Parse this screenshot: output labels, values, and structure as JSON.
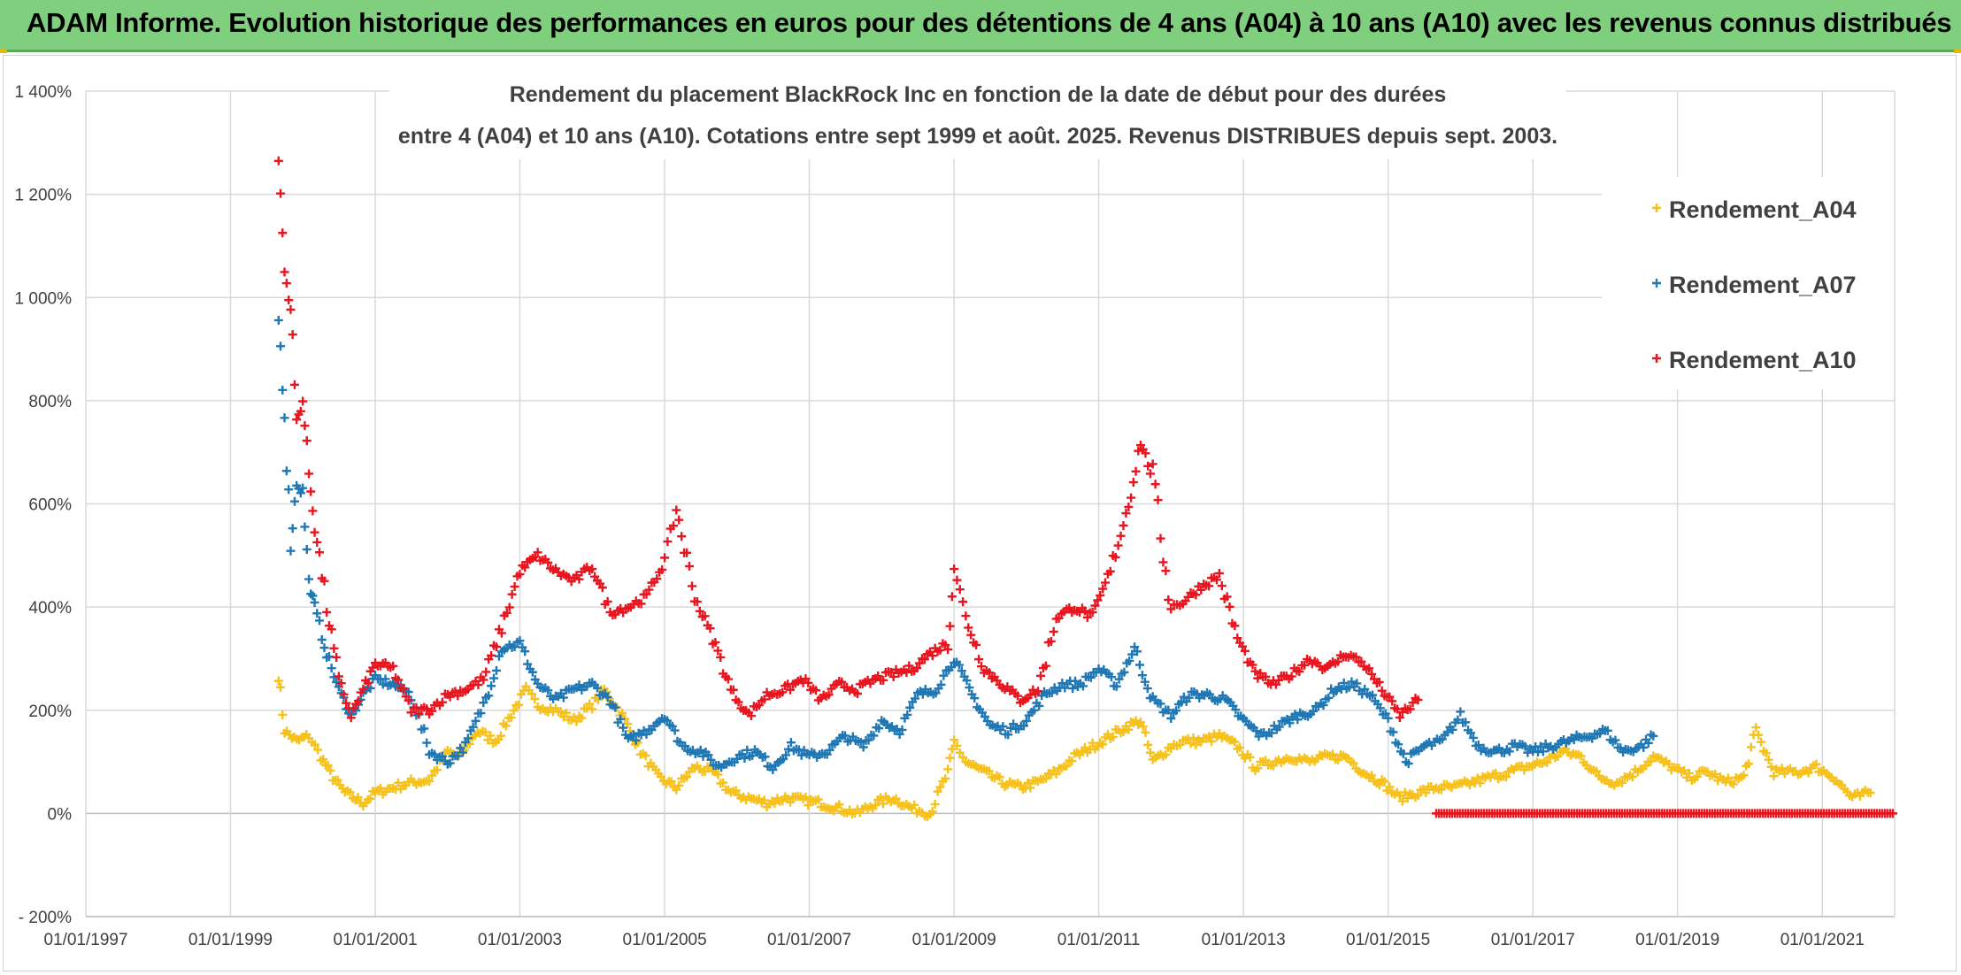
{
  "banner": {
    "text": "ADAM Informe. Evolution historique des performances en euros pour des détentions de 4 ans (A04) à 10 ans (A10) avec les revenus connus distribués"
  },
  "chart_data": {
    "type": "scatter",
    "title": "Rendement du placement BlackRock Inc en fonction de la date de début pour des durées",
    "subtitle": "entre 4 (A04) et 10 ans (A10). Cotations entre sept 1999 et août. 2025. Revenus DISTRIBUES depuis sept. 2003.",
    "xlabel": "",
    "ylabel": "",
    "x_tick_labels": [
      "01/01/1997",
      "01/01/1999",
      "01/01/2001",
      "01/01/2003",
      "01/01/2005",
      "01/01/2007",
      "01/01/2009",
      "01/01/2011",
      "01/01/2013",
      "01/01/2015",
      "01/01/2017",
      "01/01/2019",
      "01/01/2021"
    ],
    "y_tick_labels": [
      "- 200%",
      "0%",
      "200%",
      "400%",
      "600%",
      "800%",
      "1 000%",
      "1 200%",
      "1 400%"
    ],
    "ylim": [
      -200,
      1400
    ],
    "xlim": [
      "1997-01-01",
      "2022-01-01"
    ],
    "grid": true,
    "legend_position": "top-right",
    "series": [
      {
        "name": "Rendement_A04",
        "color": "#f5c11a",
        "points": [
          [
            "1999-09",
            270
          ],
          [
            "1999-10",
            160
          ],
          [
            "1999-12",
            140
          ],
          [
            "2000-02",
            150
          ],
          [
            "2000-04",
            110
          ],
          [
            "2000-06",
            70
          ],
          [
            "2000-08",
            40
          ],
          [
            "2000-11",
            20
          ],
          [
            "2001-01",
            40
          ],
          [
            "2001-04",
            50
          ],
          [
            "2001-07",
            60
          ],
          [
            "2001-10",
            65
          ],
          [
            "2002-01",
            120
          ],
          [
            "2002-03",
            110
          ],
          [
            "2002-06",
            160
          ],
          [
            "2002-09",
            140
          ],
          [
            "2002-12",
            200
          ],
          [
            "2003-02",
            240
          ],
          [
            "2003-04",
            210
          ],
          [
            "2003-07",
            200
          ],
          [
            "2003-10",
            180
          ],
          [
            "2004-01",
            210
          ],
          [
            "2004-03",
            240
          ],
          [
            "2004-06",
            190
          ],
          [
            "2004-09",
            120
          ],
          [
            "2004-12",
            70
          ],
          [
            "2005-03",
            50
          ],
          [
            "2005-06",
            90
          ],
          [
            "2005-09",
            80
          ],
          [
            "2005-12",
            40
          ],
          [
            "2006-03",
            30
          ],
          [
            "2006-06",
            20
          ],
          [
            "2006-09",
            30
          ],
          [
            "2006-12",
            25
          ],
          [
            "2007-03",
            20
          ],
          [
            "2007-06",
            10
          ],
          [
            "2007-09",
            0
          ],
          [
            "2007-12",
            20
          ],
          [
            "2008-03",
            30
          ],
          [
            "2008-06",
            10
          ],
          [
            "2008-09",
            0
          ],
          [
            "2008-12",
            80
          ],
          [
            "2009-01",
            140
          ],
          [
            "2009-03",
            100
          ],
          [
            "2009-06",
            80
          ],
          [
            "2009-09",
            60
          ],
          [
            "2009-12",
            50
          ],
          [
            "2010-03",
            60
          ],
          [
            "2010-06",
            80
          ],
          [
            "2010-09",
            110
          ],
          [
            "2010-12",
            130
          ],
          [
            "2011-03",
            150
          ],
          [
            "2011-06",
            170
          ],
          [
            "2011-08",
            180
          ],
          [
            "2011-10",
            100
          ],
          [
            "2012-01",
            130
          ],
          [
            "2012-03",
            140
          ],
          [
            "2012-06",
            140
          ],
          [
            "2012-09",
            150
          ],
          [
            "2012-12",
            130
          ],
          [
            "2013-03",
            90
          ],
          [
            "2013-06",
            100
          ],
          [
            "2013-09",
            110
          ],
          [
            "2013-12",
            100
          ],
          [
            "2014-03",
            110
          ],
          [
            "2014-06",
            110
          ],
          [
            "2014-09",
            80
          ],
          [
            "2014-12",
            60
          ],
          [
            "2015-03",
            30
          ],
          [
            "2015-06",
            40
          ],
          [
            "2015-09",
            50
          ],
          [
            "2015-12",
            50
          ],
          [
            "2016-03",
            60
          ],
          [
            "2016-06",
            70
          ],
          [
            "2016-09",
            80
          ],
          [
            "2016-12",
            90
          ],
          [
            "2017-03",
            100
          ],
          [
            "2017-06",
            120
          ],
          [
            "2017-09",
            110
          ],
          [
            "2017-12",
            70
          ],
          [
            "2018-03",
            60
          ],
          [
            "2018-06",
            80
          ],
          [
            "2018-09",
            110
          ],
          [
            "2018-12",
            90
          ],
          [
            "2019-03",
            70
          ],
          [
            "2019-06",
            80
          ],
          [
            "2019-09",
            60
          ],
          [
            "2019-12",
            70
          ],
          [
            "2020-02",
            160
          ],
          [
            "2020-05",
            80
          ],
          [
            "2020-09",
            80
          ],
          [
            "2020-12",
            90
          ],
          [
            "2021-03",
            70
          ],
          [
            "2021-06",
            30
          ],
          [
            "2021-09",
            40
          ]
        ]
      },
      {
        "name": "Rendement_A07",
        "color": "#1f77b4",
        "points": [
          [
            "1999-09",
            960
          ],
          [
            "1999-10",
            780
          ],
          [
            "1999-11",
            520
          ],
          [
            "1999-12",
            640
          ],
          [
            "2000-01",
            620
          ],
          [
            "2000-02",
            450
          ],
          [
            "2000-03",
            400
          ],
          [
            "2000-05",
            310
          ],
          [
            "2000-07",
            240
          ],
          [
            "2000-09",
            190
          ],
          [
            "2000-11",
            230
          ],
          [
            "2001-01",
            260
          ],
          [
            "2001-04",
            250
          ],
          [
            "2001-07",
            230
          ],
          [
            "2001-10",
            120
          ],
          [
            "2002-01",
            100
          ],
          [
            "2002-04",
            130
          ],
          [
            "2002-07",
            210
          ],
          [
            "2002-10",
            320
          ],
          [
            "2003-01",
            330
          ],
          [
            "2003-04",
            250
          ],
          [
            "2003-07",
            220
          ],
          [
            "2003-10",
            240
          ],
          [
            "2004-01",
            250
          ],
          [
            "2004-04",
            220
          ],
          [
            "2004-07",
            140
          ],
          [
            "2004-10",
            160
          ],
          [
            "2005-01",
            190
          ],
          [
            "2005-04",
            130
          ],
          [
            "2005-07",
            120
          ],
          [
            "2005-10",
            90
          ],
          [
            "2006-01",
            110
          ],
          [
            "2006-04",
            120
          ],
          [
            "2006-07",
            90
          ],
          [
            "2006-10",
            130
          ],
          [
            "2007-01",
            110
          ],
          [
            "2007-04",
            120
          ],
          [
            "2007-07",
            150
          ],
          [
            "2007-10",
            130
          ],
          [
            "2008-01",
            180
          ],
          [
            "2008-04",
            160
          ],
          [
            "2008-07",
            230
          ],
          [
            "2008-10",
            240
          ],
          [
            "2009-01",
            300
          ],
          [
            "2009-04",
            230
          ],
          [
            "2009-07",
            170
          ],
          [
            "2009-10",
            160
          ],
          [
            "2010-01",
            180
          ],
          [
            "2010-04",
            230
          ],
          [
            "2010-07",
            250
          ],
          [
            "2010-10",
            250
          ],
          [
            "2011-01",
            280
          ],
          [
            "2011-04",
            250
          ],
          [
            "2011-07",
            320
          ],
          [
            "2011-10",
            220
          ],
          [
            "2012-01",
            190
          ],
          [
            "2012-04",
            230
          ],
          [
            "2012-07",
            230
          ],
          [
            "2012-10",
            220
          ],
          [
            "2013-01",
            180
          ],
          [
            "2013-04",
            150
          ],
          [
            "2013-07",
            170
          ],
          [
            "2013-10",
            190
          ],
          [
            "2014-01",
            200
          ],
          [
            "2014-04",
            240
          ],
          [
            "2014-07",
            250
          ],
          [
            "2014-10",
            230
          ],
          [
            "2015-01",
            180
          ],
          [
            "2015-04",
            100
          ],
          [
            "2015-07",
            130
          ],
          [
            "2015-10",
            140
          ],
          [
            "2016-01",
            190
          ],
          [
            "2016-04",
            130
          ],
          [
            "2016-07",
            120
          ],
          [
            "2016-10",
            130
          ],
          [
            "2017-01",
            120
          ],
          [
            "2017-04",
            130
          ],
          [
            "2017-07",
            140
          ],
          [
            "2017-10",
            150
          ],
          [
            "2018-01",
            160
          ],
          [
            "2018-04",
            120
          ],
          [
            "2018-07",
            130
          ],
          [
            "2018-09",
            150
          ]
        ]
      },
      {
        "name": "Rendement_A10",
        "color": "#e8141e",
        "points": [
          [
            "1999-09",
            1270
          ],
          [
            "1999-10",
            1050
          ],
          [
            "1999-11",
            980
          ],
          [
            "1999-12",
            760
          ],
          [
            "2000-01",
            800
          ],
          [
            "2000-02",
            660
          ],
          [
            "2000-03",
            560
          ],
          [
            "2000-05",
            400
          ],
          [
            "2000-07",
            260
          ],
          [
            "2000-09",
            190
          ],
          [
            "2000-11",
            240
          ],
          [
            "2001-01",
            290
          ],
          [
            "2001-04",
            280
          ],
          [
            "2001-07",
            200
          ],
          [
            "2001-10",
            200
          ],
          [
            "2002-01",
            230
          ],
          [
            "2002-04",
            240
          ],
          [
            "2002-07",
            260
          ],
          [
            "2002-10",
            360
          ],
          [
            "2003-01",
            470
          ],
          [
            "2003-04",
            500
          ],
          [
            "2003-07",
            470
          ],
          [
            "2003-10",
            450
          ],
          [
            "2004-01",
            480
          ],
          [
            "2004-04",
            390
          ],
          [
            "2004-07",
            400
          ],
          [
            "2004-10",
            420
          ],
          [
            "2005-01",
            490
          ],
          [
            "2005-03",
            590
          ],
          [
            "2005-06",
            420
          ],
          [
            "2005-09",
            340
          ],
          [
            "2005-12",
            240
          ],
          [
            "2006-03",
            190
          ],
          [
            "2006-06",
            230
          ],
          [
            "2006-09",
            240
          ],
          [
            "2006-12",
            260
          ],
          [
            "2007-03",
            220
          ],
          [
            "2007-06",
            250
          ],
          [
            "2007-09",
            240
          ],
          [
            "2007-12",
            260
          ],
          [
            "2008-03",
            270
          ],
          [
            "2008-06",
            280
          ],
          [
            "2008-09",
            310
          ],
          [
            "2008-12",
            330
          ],
          [
            "2009-01",
            480
          ],
          [
            "2009-03",
            380
          ],
          [
            "2009-06",
            280
          ],
          [
            "2009-09",
            250
          ],
          [
            "2009-12",
            220
          ],
          [
            "2010-03",
            240
          ],
          [
            "2010-06",
            380
          ],
          [
            "2010-09",
            400
          ],
          [
            "2010-12",
            380
          ],
          [
            "2011-03",
            470
          ],
          [
            "2011-06",
            600
          ],
          [
            "2011-08",
            720
          ],
          [
            "2011-10",
            650
          ],
          [
            "2012-01",
            400
          ],
          [
            "2012-03",
            410
          ],
          [
            "2012-06",
            440
          ],
          [
            "2012-09",
            460
          ],
          [
            "2012-12",
            340
          ],
          [
            "2013-03",
            270
          ],
          [
            "2013-06",
            250
          ],
          [
            "2013-09",
            270
          ],
          [
            "2013-12",
            300
          ],
          [
            "2014-03",
            280
          ],
          [
            "2014-06",
            310
          ],
          [
            "2014-09",
            290
          ],
          [
            "2014-12",
            240
          ],
          [
            "2015-03",
            190
          ],
          [
            "2015-06",
            220
          ]
        ],
        "zero_segment": {
          "from": "2015-09",
          "to": "2022-01",
          "value": 0
        }
      }
    ]
  }
}
